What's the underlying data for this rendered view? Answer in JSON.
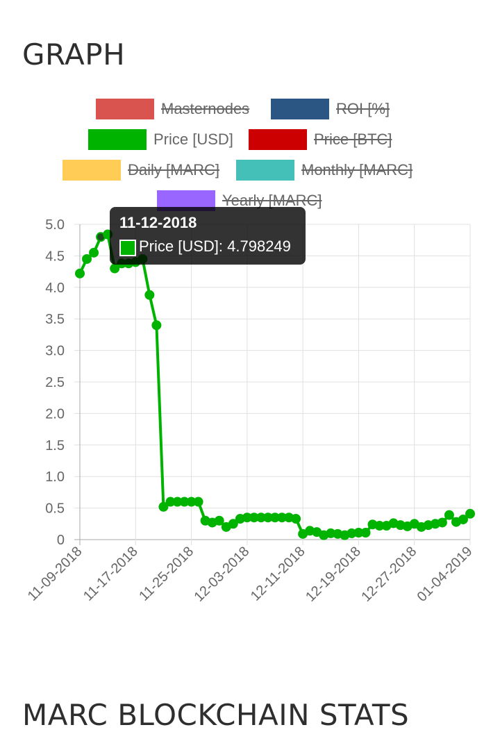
{
  "page": {
    "title": "GRAPH",
    "section_title": "MARC BLOCKCHAIN STATS"
  },
  "legend": [
    {
      "label": "Masternodes",
      "color": "#d9534f",
      "hidden": true
    },
    {
      "label": "ROI [%]",
      "color": "#2b5582",
      "hidden": true
    },
    {
      "label": "Price [USD]",
      "color": "#00b300",
      "hidden": false
    },
    {
      "label": "Price [BTC]",
      "color": "#cc0000",
      "hidden": true
    },
    {
      "label": "Daily [MARC]",
      "color": "#ffcc55",
      "hidden": true
    },
    {
      "label": "Monthly [MARC]",
      "color": "#44c0b8",
      "hidden": true
    },
    {
      "label": "Yearly [MARC]",
      "color": "#9966ff",
      "hidden": true
    }
  ],
  "tooltip": {
    "title": "11-12-2018",
    "label": "Price [USD]: 4.798249"
  },
  "chart_data": {
    "type": "line",
    "ylim": [
      0,
      5.0
    ],
    "y_ticks": [
      "0",
      "0.5",
      "1.0",
      "1.5",
      "2.0",
      "2.5",
      "3.0",
      "3.5",
      "4.0",
      "4.5",
      "5.0"
    ],
    "x_ticks": [
      "11-09-2018",
      "11-17-2018",
      "11-25-2018",
      "12-03-2018",
      "12-11-2018",
      "12-19-2018",
      "12-27-2018",
      "01-04-2019"
    ],
    "grid": true,
    "series": [
      {
        "name": "Price [USD]",
        "color": "#00b300",
        "x": [
          "11-09-2018",
          "11-10-2018",
          "11-11-2018",
          "11-12-2018",
          "11-13-2018",
          "11-14-2018",
          "11-15-2018",
          "11-16-2018",
          "11-17-2018",
          "11-18-2018",
          "11-19-2018",
          "11-20-2018",
          "11-21-2018",
          "11-22-2018",
          "11-23-2018",
          "11-24-2018",
          "11-25-2018",
          "11-26-2018",
          "11-27-2018",
          "11-28-2018",
          "11-29-2018",
          "11-30-2018",
          "12-01-2018",
          "12-02-2018",
          "12-03-2018",
          "12-04-2018",
          "12-05-2018",
          "12-06-2018",
          "12-07-2018",
          "12-08-2018",
          "12-09-2018",
          "12-10-2018",
          "12-11-2018",
          "12-12-2018",
          "12-13-2018",
          "12-14-2018",
          "12-15-2018",
          "12-16-2018",
          "12-17-2018",
          "12-18-2018",
          "12-19-2018",
          "12-20-2018",
          "12-21-2018",
          "12-22-2018",
          "12-23-2018",
          "12-24-2018",
          "12-25-2018",
          "12-26-2018",
          "12-27-2018",
          "12-28-2018",
          "12-29-2018",
          "12-30-2018",
          "12-31-2018",
          "01-01-2019",
          "01-02-2019",
          "01-03-2019",
          "01-04-2019"
        ],
        "values": [
          4.22,
          4.45,
          4.55,
          4.8,
          4.84,
          4.3,
          4.38,
          4.38,
          4.4,
          4.45,
          3.88,
          3.4,
          0.52,
          0.6,
          0.6,
          0.6,
          0.6,
          0.6,
          0.3,
          0.27,
          0.3,
          0.2,
          0.25,
          0.33,
          0.35,
          0.35,
          0.35,
          0.35,
          0.35,
          0.35,
          0.35,
          0.33,
          0.09,
          0.14,
          0.12,
          0.07,
          0.1,
          0.09,
          0.07,
          0.1,
          0.11,
          0.11,
          0.24,
          0.22,
          0.22,
          0.26,
          0.23,
          0.21,
          0.25,
          0.2,
          0.23,
          0.25,
          0.27,
          0.39,
          0.28,
          0.32,
          0.41
        ]
      }
    ]
  }
}
